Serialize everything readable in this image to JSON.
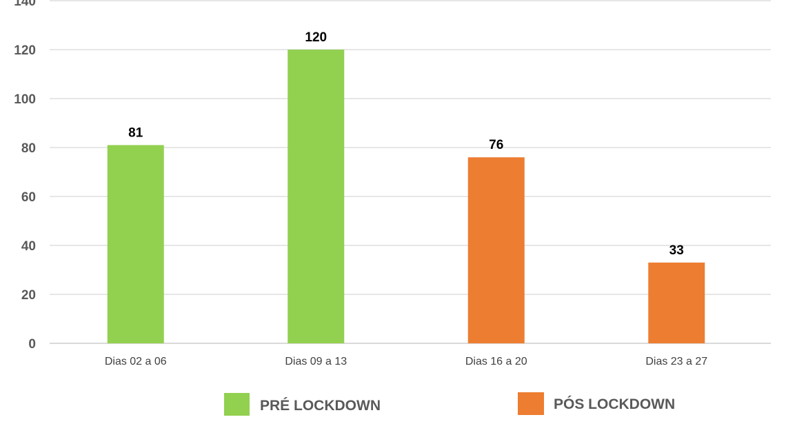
{
  "chart_data": {
    "type": "bar",
    "categories": [
      "Dias 02 a 06",
      "Dias 09 a 13",
      "Dias 16 a 20",
      "Dias 23 a 27"
    ],
    "values": [
      81,
      120,
      76,
      33
    ],
    "data_labels": [
      "81",
      "120",
      "76",
      "33"
    ],
    "bar_groups": [
      "PRÉ LOCKDOWN",
      "PRÉ LOCKDOWN",
      "PÓS LOCKDOWN",
      "PÓS LOCKDOWN"
    ],
    "legend": [
      {
        "label": "PRÉ LOCKDOWN",
        "color": "#92D050"
      },
      {
        "label": "PÓS LOCKDOWN",
        "color": "#ED7D31"
      }
    ],
    "ylim": [
      0,
      140
    ],
    "yticks": [
      "0",
      "20",
      "40",
      "60",
      "80",
      "100",
      "120",
      "140"
    ],
    "grid": true,
    "legend_position": "bottom",
    "title": "",
    "xlabel": "",
    "ylabel": ""
  }
}
